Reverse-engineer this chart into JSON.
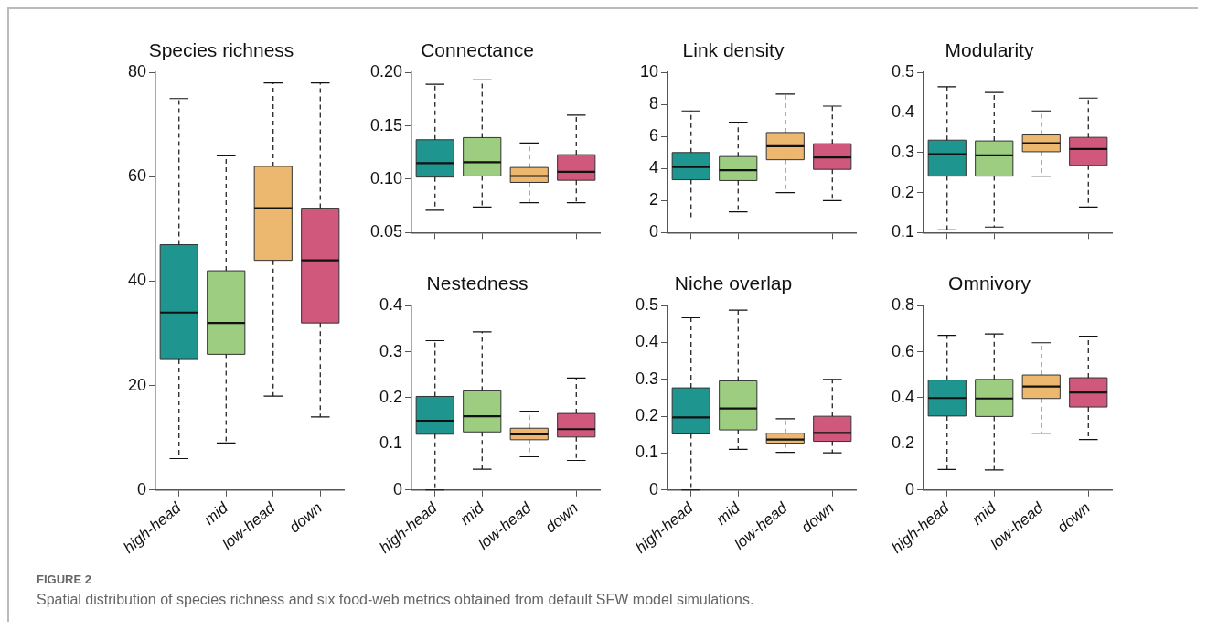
{
  "chart_data": [
    {
      "type": "box",
      "title": "Species richness",
      "categories": [
        "high-head",
        "mid",
        "low-head",
        "down"
      ],
      "colors": [
        "#1f9590",
        "#9ccd80",
        "#ecb76f",
        "#d0587c"
      ],
      "ylim": [
        0,
        80
      ],
      "yticks": [
        0,
        20,
        40,
        60,
        80
      ],
      "boxes": [
        {
          "low": 6,
          "q1": 25,
          "median": 34,
          "q3": 47,
          "high": 75
        },
        {
          "low": 9,
          "q1": 26,
          "median": 32,
          "q3": 42,
          "high": 64
        },
        {
          "low": 18,
          "q1": 44,
          "median": 54,
          "q3": 62,
          "high": 78
        },
        {
          "low": 14,
          "q1": 32,
          "median": 44,
          "q3": 54,
          "high": 78
        }
      ],
      "annotations": [
        "FIGURE 2",
        "Spatial distribution of species richness and six food-web metrics obtained from default SFW model simulations."
      ]
    },
    {
      "type": "box",
      "title": "Connectance",
      "categories": [
        null,
        null,
        null,
        null
      ],
      "colors": [
        "#1f9590",
        "#9ccd80",
        "#ecb76f",
        "#d0587c"
      ],
      "ylim": [
        0.05,
        0.2
      ],
      "yticks": [
        {
          "value": 0.05,
          "label": "0.05"
        },
        {
          "value": 0.1,
          "label": "0.10"
        },
        {
          "value": 0.15,
          "label": "0.15"
        },
        {
          "value": 0.2,
          "label": "0.20"
        }
      ],
      "tick_labels": "y",
      "boxes": [
        {
          "low": 0.071,
          "q1": 0.102,
          "median": 0.115,
          "q3": 0.137,
          "high": 0.189
        },
        {
          "low": 0.074,
          "q1": 0.103,
          "median": 0.116,
          "q3": 0.139,
          "high": 0.193
        },
        {
          "low": 0.078,
          "q1": 0.097,
          "median": 0.103,
          "q3": 0.111,
          "high": 0.134
        },
        {
          "low": 0.078,
          "q1": 0.099,
          "median": 0.107,
          "q3": 0.123,
          "high": 0.16
        }
      ]
    },
    {
      "type": "box",
      "title": "Link density",
      "categories": [
        null,
        null,
        null,
        null
      ],
      "colors": [
        "#1f9590",
        "#9ccd80",
        "#ecb76f",
        "#d0587c"
      ],
      "ylim": [
        0,
        10
      ],
      "yticks": [
        0,
        2,
        4,
        6,
        8,
        10
      ],
      "tick_labels": "y",
      "boxes": [
        {
          "low": 0.85,
          "q1": 3.3,
          "median": 4.1,
          "q3": 5,
          "high": 7.6
        },
        {
          "low": 1.3,
          "q1": 3.25,
          "median": 3.9,
          "q3": 4.75,
          "high": 6.9
        },
        {
          "low": 2.5,
          "q1": 4.55,
          "median": 5.4,
          "q3": 6.25,
          "high": 8.65
        },
        {
          "low": 2,
          "q1": 3.95,
          "median": 4.7,
          "q3": 5.55,
          "high": 7.9
        }
      ]
    },
    {
      "type": "box",
      "title": "Modularity",
      "categories": [
        null,
        null,
        null,
        null
      ],
      "colors": [
        "#1f9590",
        "#9ccd80",
        "#ecb76f",
        "#d0587c"
      ],
      "ylim": [
        0.1,
        0.5
      ],
      "yticks": [
        0.1,
        0.2,
        0.3,
        0.4,
        0.5
      ],
      "tick_labels": "y",
      "boxes": [
        {
          "low": 0.107,
          "q1": 0.241,
          "median": 0.296,
          "q3": 0.331,
          "high": 0.464
        },
        {
          "low": 0.114,
          "q1": 0.241,
          "median": 0.293,
          "q3": 0.329,
          "high": 0.45
        },
        {
          "low": 0.241,
          "q1": 0.302,
          "median": 0.323,
          "q3": 0.344,
          "high": 0.404
        },
        {
          "low": 0.164,
          "q1": 0.268,
          "median": 0.309,
          "q3": 0.338,
          "high": 0.436
        }
      ]
    },
    {
      "type": "box",
      "title": "Nestedness",
      "categories": [
        "high-head",
        "mid",
        "low-head",
        "down"
      ],
      "colors": [
        "#1f9590",
        "#9ccd80",
        "#ecb76f",
        "#d0587c"
      ],
      "ylim": [
        0,
        0.4
      ],
      "yticks": [
        0,
        0.1,
        0.2,
        0.3,
        0.4
      ],
      "boxes": [
        {
          "low": 0,
          "q1": 0.121,
          "median": 0.15,
          "q3": 0.203,
          "high": 0.324
        },
        {
          "low": 0.045,
          "q1": 0.126,
          "median": 0.16,
          "q3": 0.215,
          "high": 0.343
        },
        {
          "low": 0.072,
          "q1": 0.109,
          "median": 0.121,
          "q3": 0.134,
          "high": 0.171
        },
        {
          "low": 0.064,
          "q1": 0.115,
          "median": 0.132,
          "q3": 0.166,
          "high": 0.243
        }
      ]
    },
    {
      "type": "box",
      "title": "Niche overlap",
      "categories": [
        "high-head",
        "mid",
        "low-head",
        "down"
      ],
      "colors": [
        "#1f9590",
        "#9ccd80",
        "#ecb76f",
        "#d0587c"
      ],
      "ylim": [
        0,
        0.5
      ],
      "yticks": [
        0,
        0.1,
        0.2,
        0.3,
        0.4,
        0.5
      ],
      "boxes": [
        {
          "low": 0,
          "q1": 0.152,
          "median": 0.197,
          "q3": 0.277,
          "high": 0.467
        },
        {
          "low": 0.11,
          "q1": 0.163,
          "median": 0.221,
          "q3": 0.296,
          "high": 0.488
        },
        {
          "low": 0.102,
          "q1": 0.127,
          "median": 0.137,
          "q3": 0.154,
          "high": 0.193
        },
        {
          "low": 0.101,
          "q1": 0.132,
          "median": 0.155,
          "q3": 0.2,
          "high": 0.3
        }
      ]
    },
    {
      "type": "box",
      "title": "Omnivory",
      "categories": [
        "high-head",
        "mid",
        "low-head",
        "down"
      ],
      "colors": [
        "#1f9590",
        "#9ccd80",
        "#ecb76f",
        "#d0587c"
      ],
      "ylim": [
        0,
        0.8
      ],
      "yticks": [
        0,
        0.2,
        0.4,
        0.6,
        0.8
      ],
      "boxes": [
        {
          "low": 0.089,
          "q1": 0.321,
          "median": 0.399,
          "q3": 0.477,
          "high": 0.671
        },
        {
          "low": 0.087,
          "q1": 0.319,
          "median": 0.397,
          "q3": 0.48,
          "high": 0.677
        },
        {
          "low": 0.247,
          "q1": 0.397,
          "median": 0.449,
          "q3": 0.499,
          "high": 0.639
        },
        {
          "low": 0.219,
          "q1": 0.36,
          "median": 0.423,
          "q3": 0.487,
          "high": 0.667
        }
      ]
    }
  ]
}
